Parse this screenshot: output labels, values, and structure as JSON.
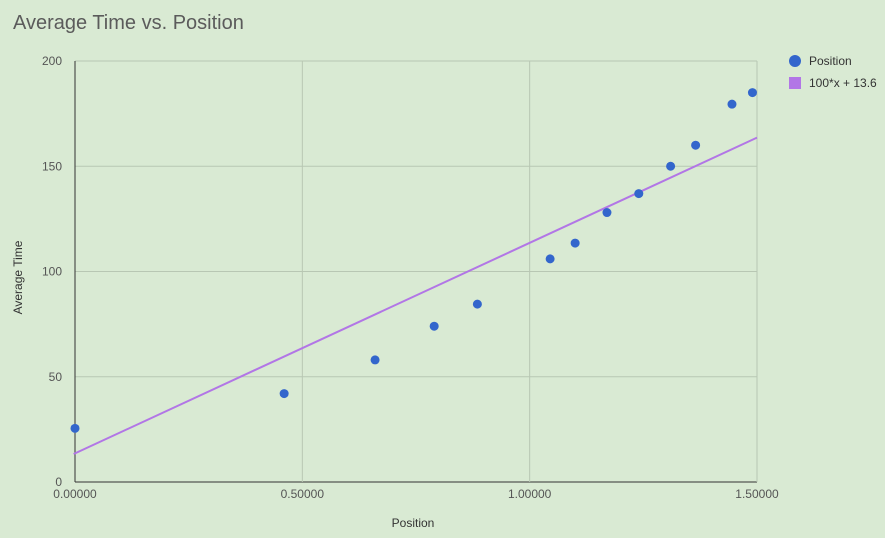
{
  "chart_data": {
    "type": "scatter",
    "title": "Average Time vs. Position",
    "xlabel": "Position",
    "ylabel": "Average Time",
    "xlim": [
      0,
      1.5
    ],
    "ylim": [
      0,
      200
    ],
    "x_ticks": [
      "0.00000",
      "0.50000",
      "1.00000",
      "1.50000"
    ],
    "y_ticks": [
      "0",
      "50",
      "100",
      "150",
      "200"
    ],
    "grid": true,
    "legend_position": "right",
    "series": [
      {
        "name": "Position",
        "kind": "scatter",
        "color": "#3366cc",
        "points": [
          {
            "x": 0.0,
            "y": 25.5
          },
          {
            "x": 0.46,
            "y": 42
          },
          {
            "x": 0.66,
            "y": 58
          },
          {
            "x": 0.79,
            "y": 74
          },
          {
            "x": 0.885,
            "y": 84.5
          },
          {
            "x": 1.045,
            "y": 106
          },
          {
            "x": 1.1,
            "y": 113.5
          },
          {
            "x": 1.17,
            "y": 128
          },
          {
            "x": 1.24,
            "y": 137
          },
          {
            "x": 1.31,
            "y": 150
          },
          {
            "x": 1.365,
            "y": 160
          },
          {
            "x": 1.445,
            "y": 179.5
          },
          {
            "x": 1.49,
            "y": 185
          }
        ]
      },
      {
        "name": "100*x + 13.6",
        "kind": "trendline",
        "color": "#b276e6",
        "slope": 100,
        "intercept": 13.6
      }
    ]
  }
}
